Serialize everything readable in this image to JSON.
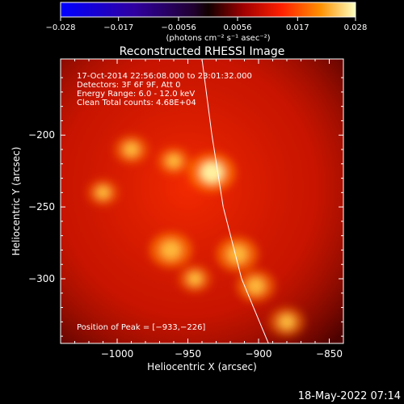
{
  "colorbar": {
    "ticks": [
      "-0.028",
      "-0.017",
      "-0.0056",
      "0.0056",
      "0.017",
      "0.028"
    ],
    "unit_label": "(photons cm⁻² s⁻¹ asec⁻²)",
    "range": [
      -0.028,
      0.028
    ]
  },
  "chart_data": {
    "type": "heatmap",
    "title": "Reconstructed RHESSI Image",
    "xlabel": "Heliocentric X (arcsec)",
    "ylabel": "Heliocentric Y (arcsec)",
    "xlim": [
      -1040,
      -840
    ],
    "ylim": [
      -345,
      -147
    ],
    "x_ticks": [
      -1000,
      -950,
      -900,
      -850
    ],
    "y_ticks": [
      -200,
      -250,
      -300
    ],
    "x_tick_labels": [
      "−1000",
      "−950",
      "−900",
      "−850"
    ],
    "y_tick_labels": [
      "−200",
      "−250",
      "−300"
    ],
    "info_lines": [
      "17-Oct-2014 22:56:08.000 to 23:01:32.000",
      "Detectors: 3F 6F 9F, Att 0",
      "Energy Range: 6.0 - 12.0 keV",
      "Clean    Total counts: 4.68E+04"
    ],
    "peak_label": "Position of Peak = [−933,−226]",
    "peak_position": [
      -933,
      -226
    ],
    "sources": [
      {
        "x": -933,
        "y": -226,
        "intensity": 1.0
      },
      {
        "x": -962,
        "y": -280,
        "intensity": 0.85
      },
      {
        "x": -915,
        "y": -283,
        "intensity": 0.82
      },
      {
        "x": -902,
        "y": -305,
        "intensity": 0.7
      },
      {
        "x": -880,
        "y": -330,
        "intensity": 0.6
      },
      {
        "x": -990,
        "y": -210,
        "intensity": 0.55
      },
      {
        "x": -960,
        "y": -218,
        "intensity": 0.5
      },
      {
        "x": -945,
        "y": -300,
        "intensity": 0.5
      },
      {
        "x": -1010,
        "y": -240,
        "intensity": 0.45
      }
    ],
    "limb_curve": [
      {
        "x": -940,
        "y": -147
      },
      {
        "x": -933,
        "y": -200
      },
      {
        "x": -925,
        "y": -250
      },
      {
        "x": -912,
        "y": -300
      },
      {
        "x": -893,
        "y": -345
      }
    ]
  },
  "footer": {
    "timestamp": "18-May-2022 07:14"
  }
}
